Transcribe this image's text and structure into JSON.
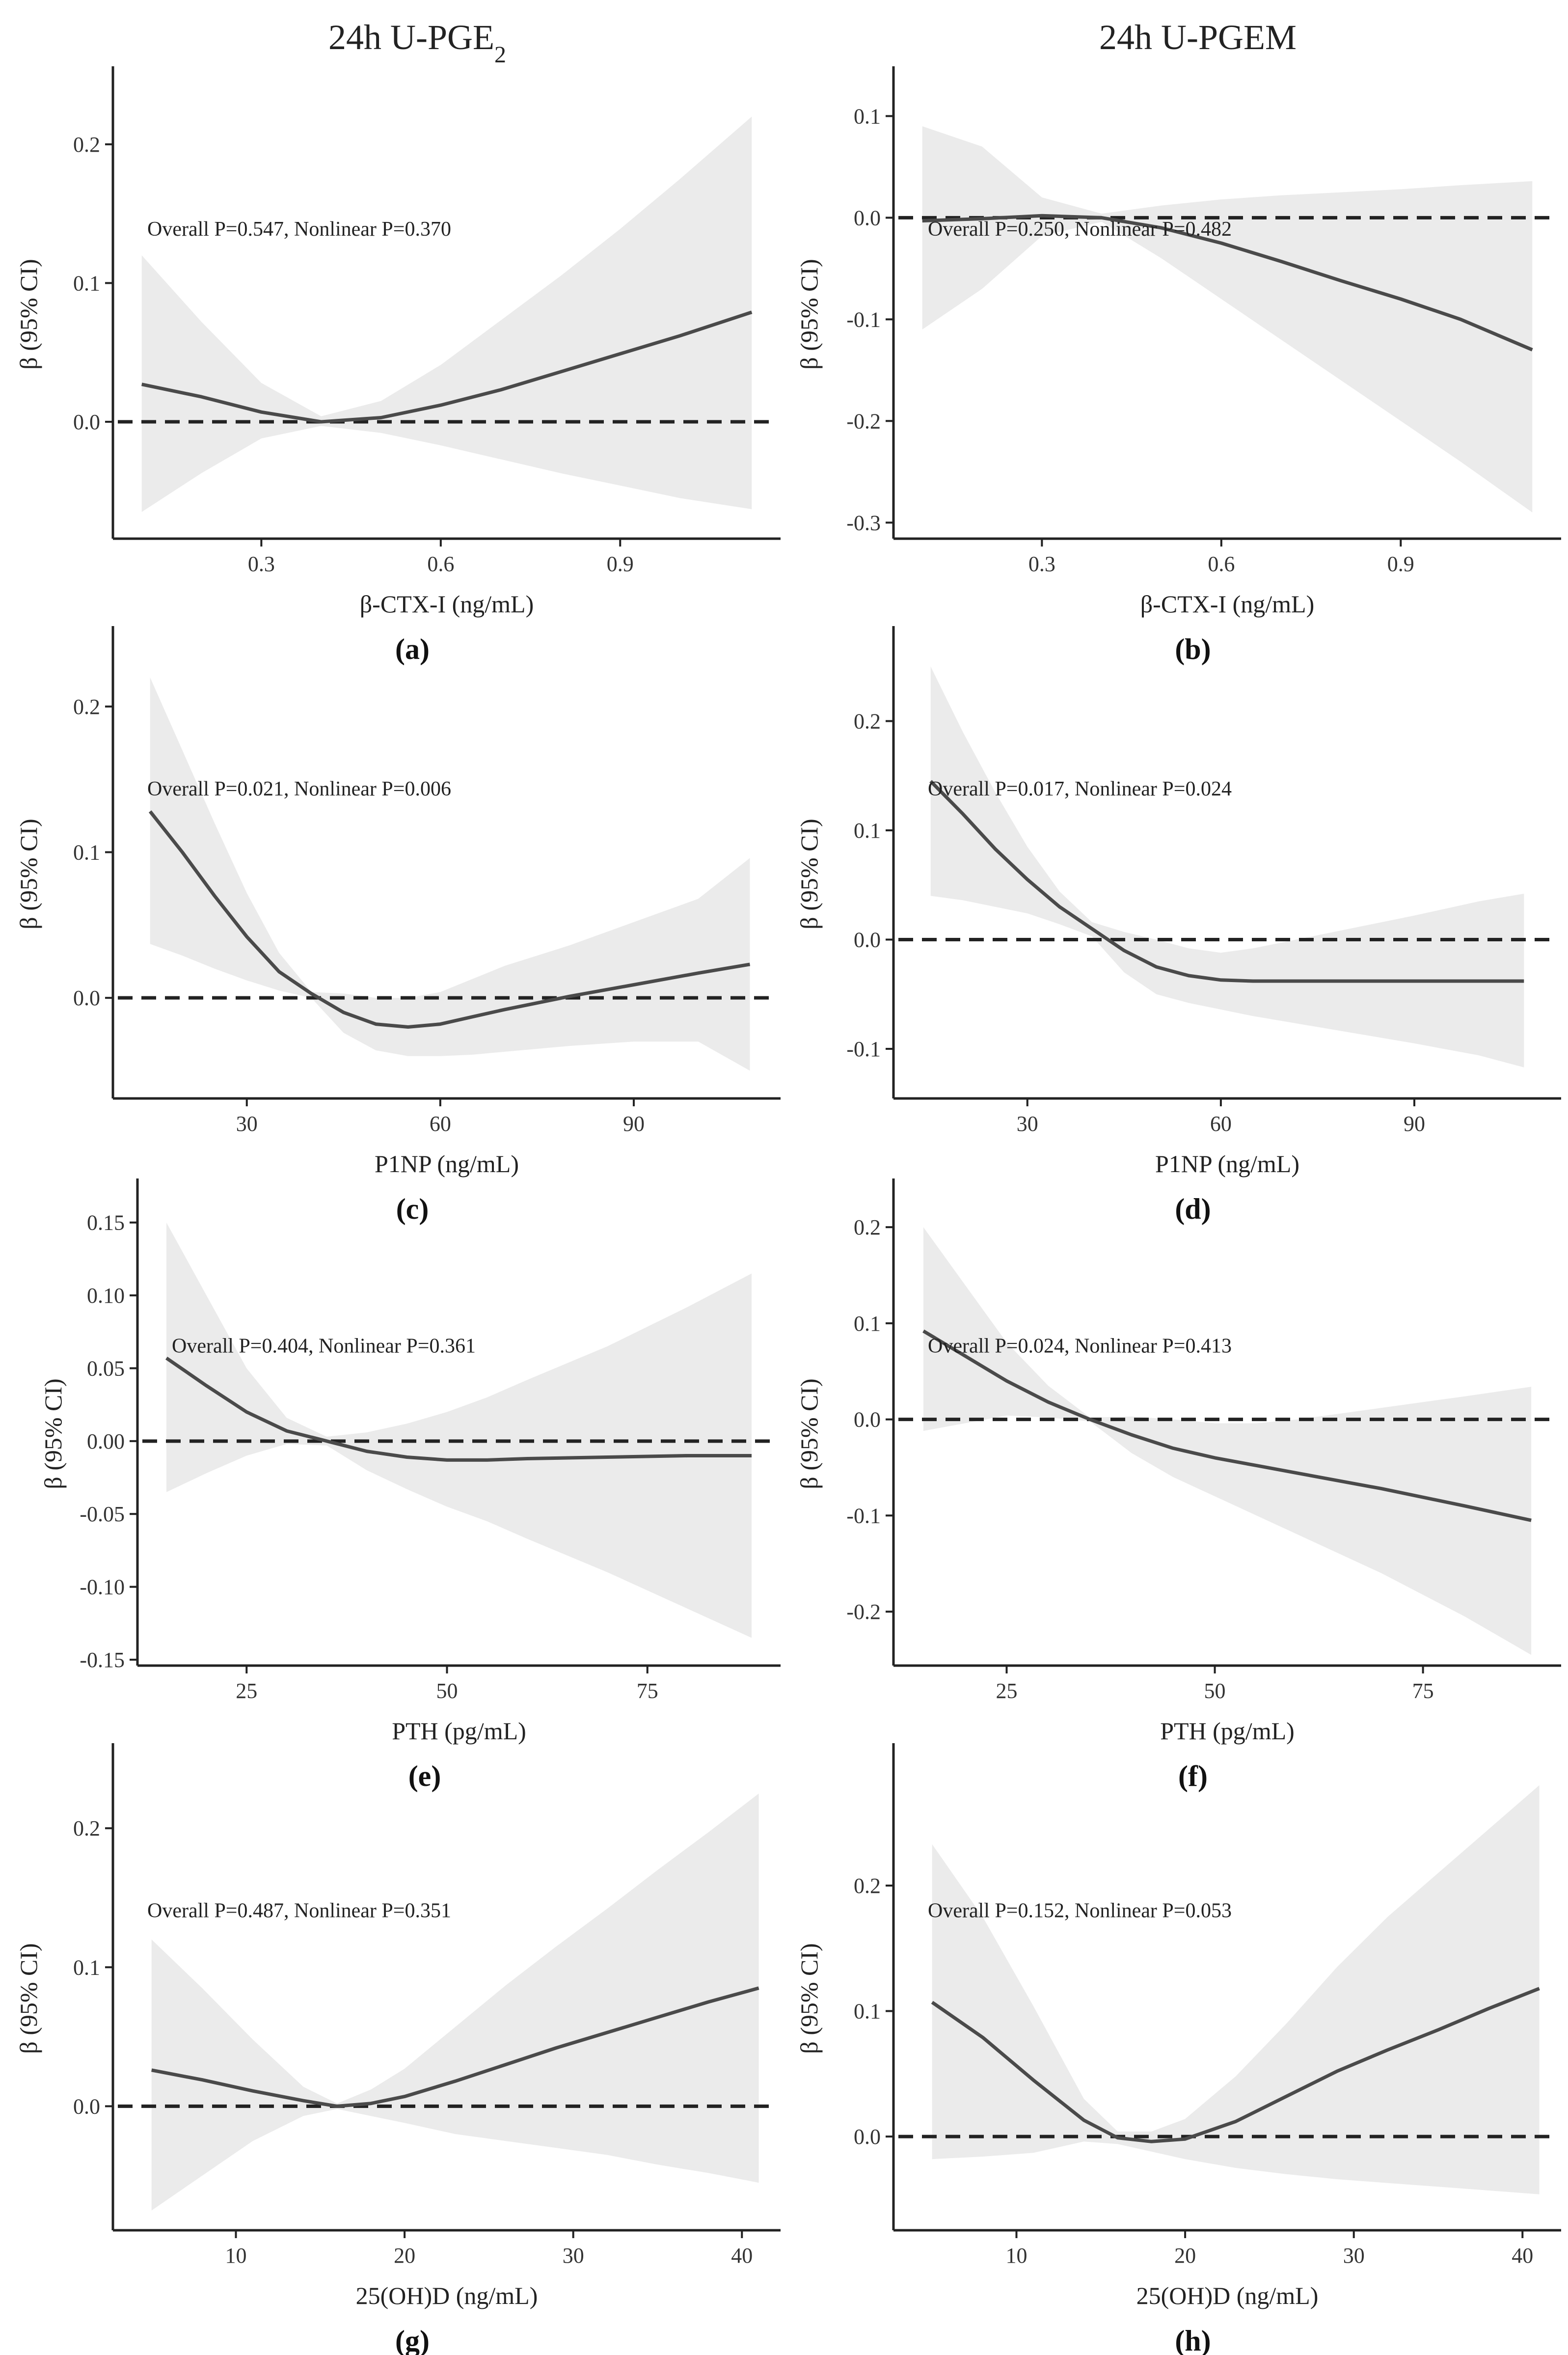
{
  "column_titles": [
    {
      "text": "24h U-PGE",
      "sub": "2"
    },
    {
      "text": "24h U-PGEM",
      "sub": ""
    }
  ],
  "colors": {
    "line": "#4a4a4a",
    "ci_band": "#ebebeb",
    "axis": "#222222",
    "reference_line": "#222222"
  },
  "chart_data": [
    {
      "panel": "(a)",
      "type": "line",
      "xlabel": "β-CTX-I (ng/mL)",
      "ylabel": "β (95% CI)",
      "annotation": "Overall P=0.547, Nonlinear P=0.370",
      "xlim": [
        0.06,
        1.16
      ],
      "ylim": [
        -0.08,
        0.235
      ],
      "xticks": [
        0.3,
        0.6,
        0.9
      ],
      "xtick_labels": [
        "0.3",
        "0.6",
        "0.9"
      ],
      "yticks": [
        0,
        0.1,
        0.2
      ],
      "ytick_labels": [
        "0.0",
        "0.1",
        "0.2"
      ],
      "reference_y": 0,
      "x": [
        0.1,
        0.2,
        0.3,
        0.4,
        0.5,
        0.6,
        0.7,
        0.8,
        0.9,
        1.0,
        1.12
      ],
      "y": [
        0.027,
        0.018,
        0.007,
        0.0,
        0.003,
        0.012,
        0.023,
        0.036,
        0.049,
        0.062,
        0.079
      ],
      "lower": [
        -0.065,
        -0.037,
        -0.012,
        -0.003,
        -0.008,
        -0.017,
        -0.027,
        -0.037,
        -0.046,
        -0.055,
        -0.063
      ],
      "upper": [
        0.12,
        0.072,
        0.028,
        0.004,
        0.015,
        0.041,
        0.073,
        0.105,
        0.139,
        0.175,
        0.22
      ]
    },
    {
      "panel": "(b)",
      "type": "line",
      "xlabel": "β-CTX-I (ng/mL)",
      "ylabel": "β (95% CI)",
      "annotation": "Overall P=0.250, Nonlinear P=0.482",
      "xlim": [
        0.06,
        1.16
      ],
      "ylim": [
        -0.31,
        0.12
      ],
      "xticks": [
        0.3,
        0.6,
        0.9
      ],
      "xtick_labels": [
        "0.3",
        "0.6",
        "0.9"
      ],
      "yticks": [
        -0.3,
        -0.2,
        -0.1,
        0,
        0.1
      ],
      "ytick_labels": [
        "-0.3",
        "-0.2",
        "-0.1",
        "0.0",
        "0.1"
      ],
      "reference_y": 0,
      "x": [
        0.1,
        0.2,
        0.3,
        0.4,
        0.5,
        0.6,
        0.7,
        0.8,
        0.9,
        1.0,
        1.12
      ],
      "y": [
        -0.003,
        -0.001,
        0.002,
        0.0,
        -0.01,
        -0.025,
        -0.043,
        -0.062,
        -0.08,
        -0.1,
        -0.13
      ],
      "lower": [
        -0.11,
        -0.07,
        -0.018,
        -0.004,
        -0.04,
        -0.08,
        -0.12,
        -0.16,
        -0.2,
        -0.24,
        -0.29
      ],
      "upper": [
        0.09,
        0.07,
        0.02,
        0.004,
        0.012,
        0.018,
        0.022,
        0.025,
        0.028,
        0.032,
        0.036
      ]
    },
    {
      "panel": "(c)",
      "type": "line",
      "xlabel": "P1NP (ng/mL)",
      "ylabel": "β (95% CI)",
      "annotation": "Overall P=0.021, Nonlinear P=0.006",
      "xlim": [
        10,
        112
      ],
      "ylim": [
        -0.065,
        0.235
      ],
      "xticks": [
        30,
        60,
        90
      ],
      "xtick_labels": [
        "30",
        "60",
        "90"
      ],
      "yticks": [
        0,
        0.1,
        0.2
      ],
      "ytick_labels": [
        "0.0",
        "0.1",
        "0.2"
      ],
      "reference_y": 0,
      "x": [
        15,
        20,
        25,
        30,
        35,
        40,
        45,
        50,
        55,
        60,
        65,
        70,
        80,
        90,
        100,
        108
      ],
      "y": [
        0.128,
        0.1,
        0.07,
        0.042,
        0.018,
        0.003,
        -0.01,
        -0.018,
        -0.02,
        -0.018,
        -0.013,
        -0.008,
        0.001,
        0.009,
        0.017,
        0.023
      ],
      "lower": [
        0.037,
        0.029,
        0.02,
        0.012,
        0.005,
        0.0,
        -0.024,
        -0.036,
        -0.04,
        -0.04,
        -0.039,
        -0.037,
        -0.033,
        -0.03,
        -0.03,
        -0.05
      ],
      "upper": [
        0.22,
        0.17,
        0.12,
        0.072,
        0.031,
        0.004,
        0.003,
        0.0,
        0.0,
        0.004,
        0.013,
        0.022,
        0.036,
        0.052,
        0.068,
        0.096
      ]
    },
    {
      "panel": "(d)",
      "type": "line",
      "xlabel": "P1NP (ng/mL)",
      "ylabel": "β (95% CI)",
      "annotation": "Overall P=0.017, Nonlinear P=0.024",
      "xlim": [
        10,
        112
      ],
      "ylim": [
        -0.14,
        0.26
      ],
      "xticks": [
        30,
        60,
        90
      ],
      "xtick_labels": [
        "30",
        "60",
        "90"
      ],
      "yticks": [
        -0.1,
        0,
        0.1,
        0.2
      ],
      "ytick_labels": [
        "-0.1",
        "0.0",
        "0.1",
        "0.2"
      ],
      "reference_y": 0,
      "x": [
        15,
        20,
        25,
        30,
        35,
        40,
        45,
        50,
        55,
        60,
        65,
        70,
        80,
        90,
        100,
        107
      ],
      "y": [
        0.145,
        0.115,
        0.083,
        0.055,
        0.03,
        0.01,
        -0.01,
        -0.025,
        -0.033,
        -0.037,
        -0.038,
        -0.038,
        -0.038,
        -0.038,
        -0.038,
        -0.038
      ],
      "lower": [
        0.04,
        0.036,
        0.03,
        0.024,
        0.014,
        0.003,
        -0.03,
        -0.05,
        -0.058,
        -0.064,
        -0.07,
        -0.075,
        -0.085,
        -0.095,
        -0.106,
        -0.117
      ],
      "upper": [
        0.25,
        0.19,
        0.135,
        0.085,
        0.044,
        0.016,
        0.007,
        0.0,
        -0.008,
        -0.012,
        -0.008,
        -0.002,
        0.01,
        0.022,
        0.035,
        0.042
      ]
    },
    {
      "panel": "(e)",
      "type": "line",
      "xlabel": "PTH (pg/mL)",
      "ylabel": "β (95% CI)",
      "annotation": "Overall P=0.404, Nonlinear P=0.361",
      "xlim": [
        12,
        91
      ],
      "ylim": [
        -0.15,
        0.16
      ],
      "xticks": [
        25,
        50,
        75
      ],
      "xtick_labels": [
        "25",
        "50",
        "75"
      ],
      "yticks": [
        -0.15,
        -0.1,
        -0.05,
        0,
        0.05,
        0.1,
        0.15
      ],
      "ytick_labels": [
        "-0.15",
        "-0.10",
        "-0.05",
        "0.00",
        "0.05",
        "0.10",
        "0.15"
      ],
      "reference_y": 0,
      "x": [
        15,
        20,
        25,
        30,
        35,
        40,
        45,
        50,
        55,
        60,
        70,
        80,
        88
      ],
      "y": [
        0.057,
        0.038,
        0.02,
        0.007,
        0.0,
        -0.007,
        -0.011,
        -0.013,
        -0.013,
        -0.012,
        -0.011,
        -0.01,
        -0.01
      ],
      "lower": [
        -0.035,
        -0.022,
        -0.01,
        -0.002,
        -0.003,
        -0.02,
        -0.033,
        -0.045,
        -0.055,
        -0.067,
        -0.09,
        -0.115,
        -0.135
      ],
      "upper": [
        0.15,
        0.1,
        0.05,
        0.016,
        0.003,
        0.006,
        0.012,
        0.02,
        0.03,
        0.042,
        0.065,
        0.092,
        0.115
      ]
    },
    {
      "panel": "(f)",
      "type": "line",
      "xlabel": "PTH (pg/mL)",
      "ylabel": "β (95% CI)",
      "annotation": "Overall P=0.024, Nonlinear P=0.413",
      "xlim": [
        12,
        91
      ],
      "ylim": [
        -0.25,
        0.22
      ],
      "xticks": [
        25,
        50,
        75
      ],
      "xtick_labels": [
        "25",
        "50",
        "75"
      ],
      "yticks": [
        -0.2,
        -0.1,
        0,
        0.1,
        0.2
      ],
      "ytick_labels": [
        "-0.2",
        "-0.1",
        "0.0",
        "0.1",
        "0.2"
      ],
      "reference_y": 0,
      "x": [
        15,
        20,
        25,
        30,
        35,
        40,
        45,
        50,
        55,
        60,
        70,
        80,
        88
      ],
      "y": [
        0.092,
        0.066,
        0.04,
        0.018,
        0.0,
        -0.016,
        -0.03,
        -0.04,
        -0.048,
        -0.056,
        -0.072,
        -0.09,
        -0.105
      ],
      "lower": [
        -0.012,
        -0.004,
        0.004,
        0.002,
        -0.002,
        -0.035,
        -0.06,
        -0.08,
        -0.1,
        -0.12,
        -0.16,
        -0.205,
        -0.245
      ],
      "upper": [
        0.2,
        0.14,
        0.08,
        0.035,
        0.002,
        0.003,
        0.0,
        -0.004,
        -0.004,
        0.0,
        0.012,
        0.024,
        0.034
      ]
    },
    {
      "panel": "(g)",
      "type": "line",
      "xlabel": "25(OH)D (ng/mL)",
      "ylabel": "β (95% CI)",
      "annotation": "Overall P=0.487, Nonlinear P=0.351",
      "xlim": [
        3,
        42
      ],
      "ylim": [
        -0.085,
        0.24
      ],
      "xticks": [
        10,
        20,
        30,
        40
      ],
      "xtick_labels": [
        "10",
        "20",
        "30",
        "40"
      ],
      "yticks": [
        0,
        0.1,
        0.2
      ],
      "ytick_labels": [
        "0.0",
        "0.1",
        "0.2"
      ],
      "reference_y": 0,
      "x": [
        5,
        8,
        11,
        14,
        16,
        18,
        20,
        23,
        26,
        29,
        32,
        35,
        38,
        41
      ],
      "y": [
        0.026,
        0.019,
        0.011,
        0.004,
        0.0,
        0.002,
        0.007,
        0.018,
        0.03,
        0.042,
        0.053,
        0.064,
        0.075,
        0.085
      ],
      "lower": [
        -0.075,
        -0.05,
        -0.025,
        -0.007,
        -0.002,
        -0.007,
        -0.012,
        -0.02,
        -0.025,
        -0.03,
        -0.035,
        -0.042,
        -0.048,
        -0.055
      ],
      "upper": [
        0.12,
        0.085,
        0.048,
        0.014,
        0.002,
        0.012,
        0.027,
        0.057,
        0.087,
        0.115,
        0.142,
        0.17,
        0.197,
        0.225
      ]
    },
    {
      "panel": "(h)",
      "type": "line",
      "xlabel": "25(OH)D (ng/mL)",
      "ylabel": "β (95% CI)",
      "annotation": "Overall P=0.152, Nonlinear P=0.053",
      "xlim": [
        3,
        42
      ],
      "ylim": [
        -0.07,
        0.29
      ],
      "xticks": [
        10,
        20,
        30,
        40
      ],
      "xtick_labels": [
        "10",
        "20",
        "30",
        "40"
      ],
      "yticks": [
        0,
        0.1,
        0.2
      ],
      "ytick_labels": [
        "0.0",
        "0.1",
        "0.2"
      ],
      "reference_y": 0,
      "x": [
        5,
        8,
        11,
        14,
        16,
        18,
        20,
        23,
        26,
        29,
        32,
        35,
        38,
        41
      ],
      "y": [
        0.107,
        0.079,
        0.045,
        0.013,
        -0.001,
        -0.004,
        -0.002,
        0.012,
        0.032,
        0.052,
        0.069,
        0.085,
        0.102,
        0.118
      ],
      "lower": [
        -0.018,
        -0.016,
        -0.013,
        -0.004,
        -0.006,
        -0.012,
        -0.018,
        -0.025,
        -0.03,
        -0.034,
        -0.037,
        -0.04,
        -0.043,
        -0.046
      ],
      "upper": [
        0.233,
        0.175,
        0.104,
        0.03,
        0.004,
        0.004,
        0.014,
        0.048,
        0.09,
        0.135,
        0.175,
        0.21,
        0.245,
        0.28
      ]
    }
  ]
}
